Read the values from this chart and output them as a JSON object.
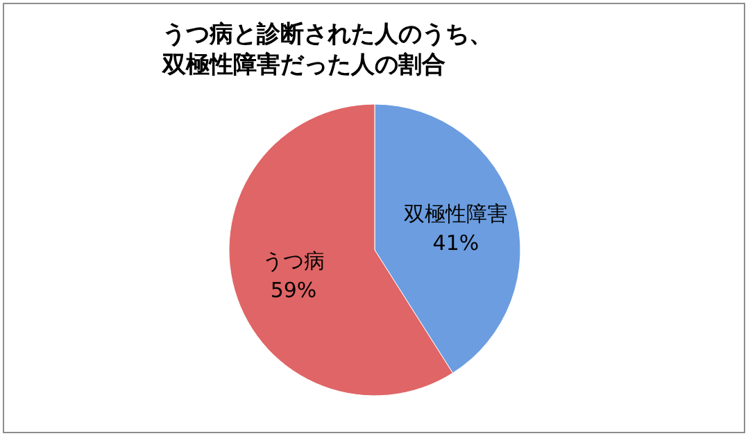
{
  "chart_data": {
    "type": "pie",
    "title": "うつ病と診断された人のうち、双極性障害だった人の割合",
    "categories": [
      "双極性障害",
      "うつ病"
    ],
    "values": [
      41,
      59
    ],
    "colors": [
      "#6b9de0",
      "#e06566"
    ],
    "value_labels": [
      "41%",
      "59%"
    ],
    "legend": false
  }
}
